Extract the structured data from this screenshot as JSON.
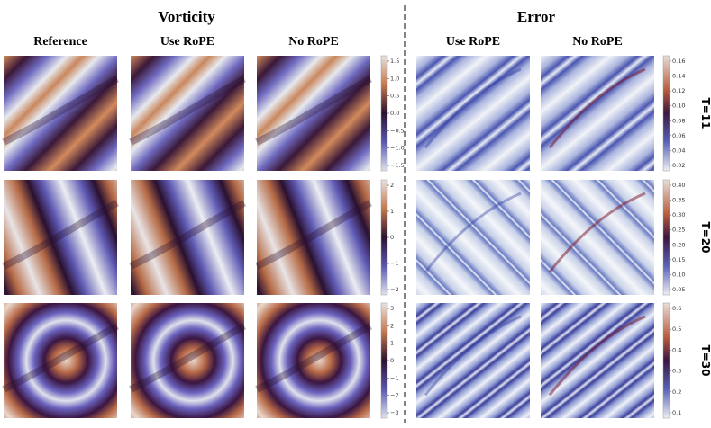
{
  "headers": [
    "Vorticity",
    "Error"
  ],
  "columns": [
    "Reference",
    "Use RoPE",
    "No RoPE",
    "Use RoPE",
    "No RoPE"
  ],
  "rows": [
    {
      "label": "T=11",
      "vorticity_ticks": [
        "1.5",
        "1.0",
        "0.5",
        "0.0",
        "−0.5",
        "−1.0",
        "−1.5"
      ],
      "error_ticks": [
        "0.16",
        "0.14",
        "0.12",
        "0.10",
        "0.08",
        "0.06",
        "0.04",
        "0.02"
      ]
    },
    {
      "label": "T=20",
      "vorticity_ticks": [
        "2",
        "1",
        "0",
        "−1",
        "−2"
      ],
      "error_ticks": [
        "0.40",
        "0.35",
        "0.30",
        "0.25",
        "0.20",
        "0.15",
        "0.10",
        "0.05"
      ]
    },
    {
      "label": "T=30",
      "vorticity_ticks": [
        "3",
        "2",
        "1",
        "0",
        "−1",
        "−2",
        "−3"
      ],
      "error_ticks": [
        "0.6",
        "0.5",
        "0.4",
        "0.3",
        "0.2",
        "0.1"
      ]
    }
  ]
}
